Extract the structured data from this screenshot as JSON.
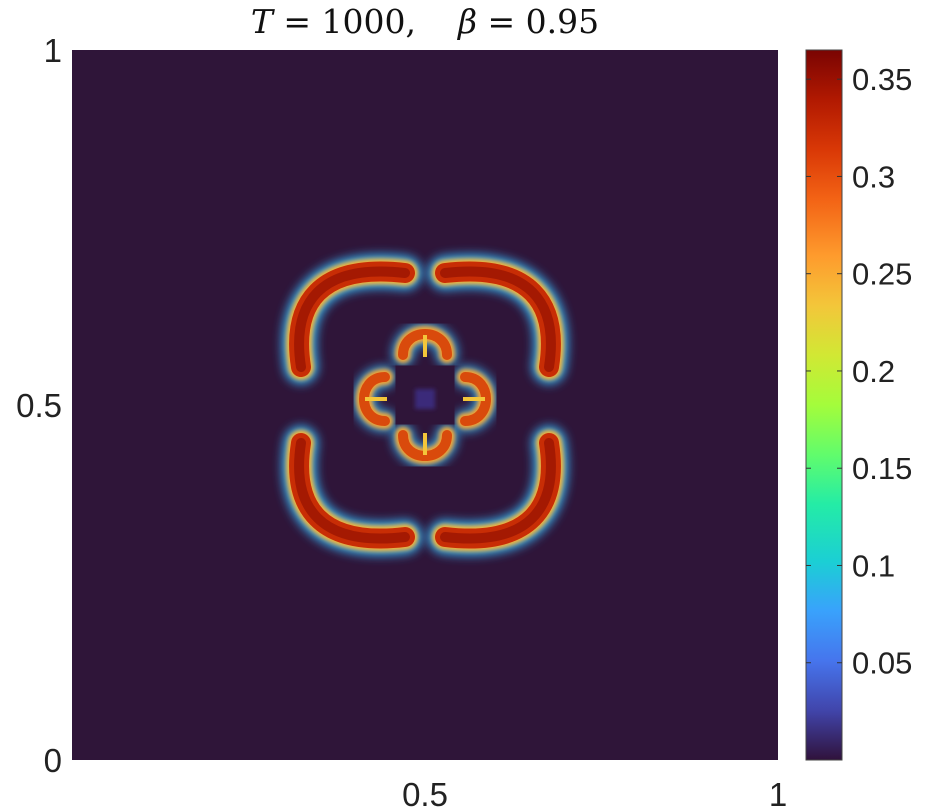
{
  "chart_data": {
    "type": "heatmap",
    "title": {
      "T_label": "T",
      "T_value": "1000,",
      "beta_label": "β",
      "beta_value": "0.95"
    },
    "xlabel": "",
    "ylabel": "",
    "xlim": [
      0,
      1
    ],
    "ylim": [
      0,
      1
    ],
    "x_ticks": [
      {
        "value": 0.5,
        "label": "0.5"
      },
      {
        "value": 1,
        "label": "1"
      }
    ],
    "y_ticks": [
      {
        "value": 0,
        "label": "0"
      },
      {
        "value": 0.5,
        "label": "0.5"
      },
      {
        "value": 1,
        "label": "1"
      }
    ],
    "colorbar": {
      "range": [
        0,
        0.365
      ],
      "ticks": [
        {
          "value": 0.05,
          "label": "0.05"
        },
        {
          "value": 0.1,
          "label": "0.1"
        },
        {
          "value": 0.15,
          "label": "0.15"
        },
        {
          "value": 0.2,
          "label": "0.2"
        },
        {
          "value": 0.25,
          "label": "0.25"
        },
        {
          "value": 0.3,
          "label": "0.3"
        },
        {
          "value": 0.35,
          "label": "0.35"
        }
      ],
      "colormap": "turbo"
    },
    "background_value": 0,
    "field": {
      "features": [
        {
          "name": "outer-arc-top-left",
          "center": [
            0.4,
            0.6
          ],
          "peak_value": 0.35
        },
        {
          "name": "outer-arc-top-right",
          "center": [
            0.6,
            0.6
          ],
          "peak_value": 0.35
        },
        {
          "name": "outer-arc-bottom-left",
          "center": [
            0.4,
            0.4
          ],
          "peak_value": 0.35
        },
        {
          "name": "outer-arc-bottom-right",
          "center": [
            0.6,
            0.4
          ],
          "peak_value": 0.35
        },
        {
          "name": "inner-lobe-top",
          "center": [
            0.5,
            0.56
          ],
          "peak_value": 0.32
        },
        {
          "name": "inner-lobe-bottom",
          "center": [
            0.5,
            0.44
          ],
          "peak_value": 0.32
        },
        {
          "name": "inner-lobe-left",
          "center": [
            0.44,
            0.5
          ],
          "peak_value": 0.32
        },
        {
          "name": "inner-lobe-right",
          "center": [
            0.56,
            0.5
          ],
          "peak_value": 0.32
        }
      ]
    },
    "grid": false
  }
}
